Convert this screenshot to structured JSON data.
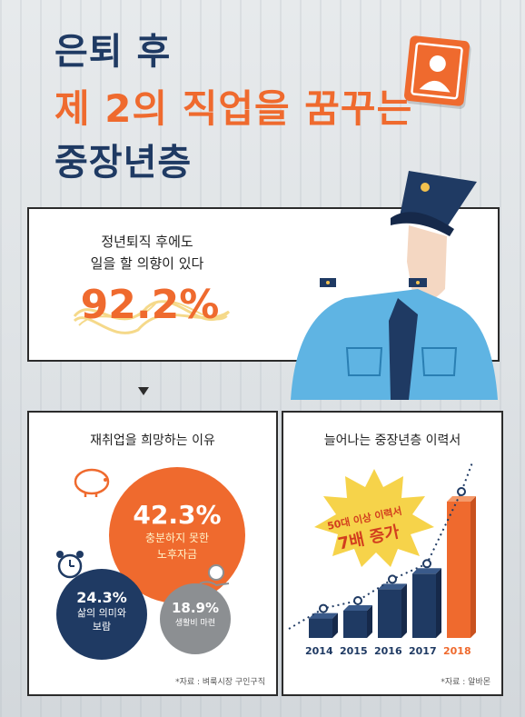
{
  "title": {
    "line1": "은퇴 후",
    "line2": "제 2의 직업을 꿈꾸는",
    "line3": "중장년층"
  },
  "survey": {
    "question_line1": "정년퇴직 후에도",
    "question_line2": "일을 할 의향이 있다",
    "percent": "92.2%"
  },
  "reasons": {
    "title": "재취업을 희망하는 이유",
    "items": [
      {
        "percent": "42.3%",
        "label_line1": "충분하지 못한",
        "label_line2": "노후자금"
      },
      {
        "percent": "24.3%",
        "label_line1": "삶의 의미와",
        "label_line2": "보람"
      },
      {
        "percent": "18.9%",
        "label_line1": "생활비 마련",
        "label_line2": ""
      }
    ],
    "source": "*자료 : 벼룩시장 구인구직"
  },
  "resumes": {
    "title": "늘어나는 중장년층 이력서",
    "badge_line1": "50대 이상 이력서",
    "badge_line2": "7배 증가",
    "source": "*자료 : 알바몬",
    "chart_data": {
      "type": "bar",
      "categories": [
        "2014",
        "2015",
        "2016",
        "2017",
        "2018"
      ],
      "values": [
        1,
        1.4,
        2.5,
        3.3,
        7
      ],
      "highlight": "2018"
    }
  },
  "colors": {
    "navy": "#1f3a63",
    "orange": "#ef6a2e",
    "gray": "#8c8f92"
  }
}
